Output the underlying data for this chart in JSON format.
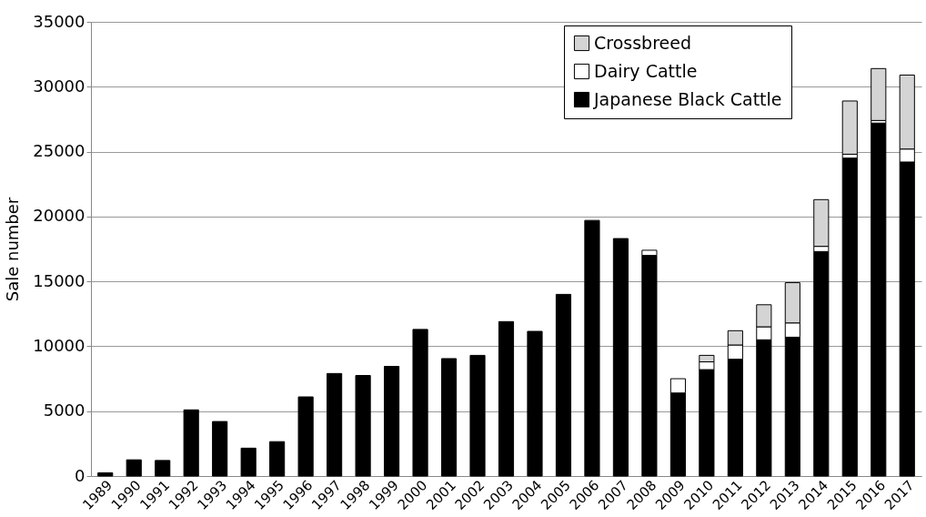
{
  "chart_data": {
    "type": "bar",
    "stacked": true,
    "ylabel": "Sale number",
    "categories": [
      "1989",
      "1990",
      "1991",
      "1992",
      "1993",
      "1994",
      "1995",
      "1996",
      "1997",
      "1998",
      "1999",
      "2000",
      "2001",
      "2002",
      "2003",
      "2004",
      "2005",
      "2006",
      "2007",
      "2008",
      "2009",
      "2010",
      "2011",
      "2012",
      "2013",
      "2014",
      "2015",
      "2016",
      "2017"
    ],
    "series": [
      {
        "name": "Japanese Black Cattle",
        "color": "#000000",
        "values": [
          250,
          1250,
          1200,
          5100,
          4200,
          2150,
          2650,
          6100,
          7900,
          7750,
          8450,
          11300,
          9050,
          9300,
          11900,
          11150,
          14000,
          19700,
          18300,
          17000,
          6400,
          8200,
          9000,
          10500,
          10700,
          17300,
          24500,
          27200,
          24200
        ]
      },
      {
        "name": "Dairy Cattle",
        "color": "#ffffff",
        "values": [
          null,
          null,
          null,
          null,
          null,
          null,
          null,
          null,
          null,
          null,
          null,
          null,
          null,
          null,
          null,
          null,
          null,
          null,
          null,
          400,
          1100,
          600,
          1100,
          1000,
          1100,
          400,
          300,
          200,
          1000
        ]
      },
      {
        "name": "Crossbreed",
        "color": "#d4d4d4",
        "values": [
          null,
          null,
          null,
          null,
          null,
          null,
          null,
          null,
          null,
          null,
          null,
          null,
          null,
          null,
          null,
          null,
          null,
          null,
          null,
          null,
          null,
          500,
          1100,
          1700,
          3100,
          3600,
          4100,
          4000,
          5700
        ]
      }
    ],
    "ylim": [
      0,
      35000
    ],
    "yticks": [
      0,
      5000,
      10000,
      15000,
      20000,
      25000,
      30000,
      35000
    ],
    "grid": "y",
    "legend": "top right"
  }
}
